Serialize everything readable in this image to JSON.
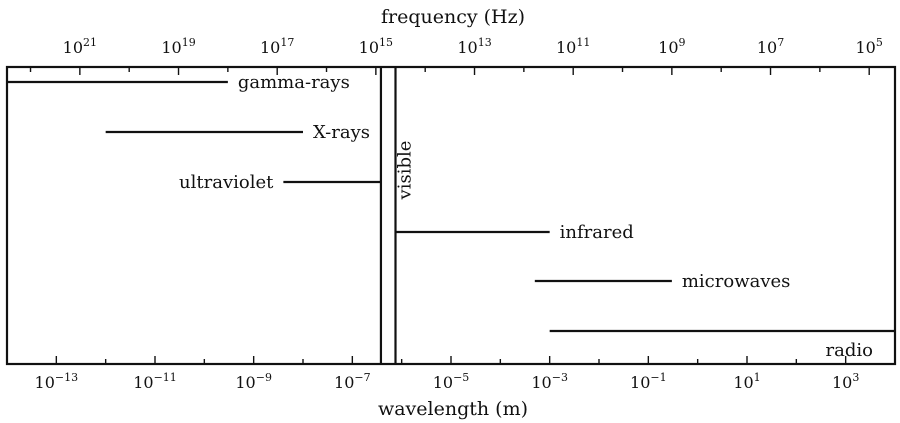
{
  "chart_data": {
    "type": "spectrum-range",
    "title": "",
    "top_axis": {
      "label": "frequency (Hz)",
      "unit": "Hz",
      "scale": "log",
      "ticks": [
        {
          "base": "10",
          "exp": "21",
          "value": 1e+21
        },
        {
          "base": "10",
          "exp": "19",
          "value": 1e+19
        },
        {
          "base": "10",
          "exp": "17",
          "value": 1e+17
        },
        {
          "base": "10",
          "exp": "15",
          "value": 1000000000000000.0
        },
        {
          "base": "10",
          "exp": "13",
          "value": 10000000000000.0
        },
        {
          "base": "10",
          "exp": "11",
          "value": 100000000000.0
        },
        {
          "base": "10",
          "exp": "9",
          "value": 1000000000.0
        },
        {
          "base": "10",
          "exp": "7",
          "value": 10000000.0
        },
        {
          "base": "10",
          "exp": "5",
          "value": 100000.0
        }
      ]
    },
    "bottom_axis": {
      "label": "wavelength (m)",
      "unit": "m",
      "scale": "log",
      "range": [
        1e-14,
        10000.0
      ],
      "ticks": [
        {
          "base": "10",
          "exp": "−13",
          "value": 1e-13
        },
        {
          "base": "10",
          "exp": "−11",
          "value": 1e-11
        },
        {
          "base": "10",
          "exp": "−9",
          "value": 1e-09
        },
        {
          "base": "10",
          "exp": "−7",
          "value": 1e-07
        },
        {
          "base": "10",
          "exp": "−5",
          "value": 1e-05
        },
        {
          "base": "10",
          "exp": "−3",
          "value": 0.001
        },
        {
          "base": "10",
          "exp": "−1",
          "value": 0.1
        },
        {
          "base": "10",
          "exp": "1",
          "value": 10.0
        },
        {
          "base": "10",
          "exp": "3",
          "value": 1000.0
        }
      ]
    },
    "bands": [
      {
        "name": "gamma-rays",
        "wavelength_min": 1e-14,
        "wavelength_max": 3e-10,
        "label_side": "right"
      },
      {
        "name": "X-rays",
        "wavelength_min": 1e-12,
        "wavelength_max": 1e-08,
        "label_side": "right"
      },
      {
        "name": "ultraviolet",
        "wavelength_min": 4e-09,
        "wavelength_max": 3.8e-07,
        "label_side": "left"
      },
      {
        "name": "visible",
        "wavelength_min": 3.8e-07,
        "wavelength_max": 7.5e-07,
        "label_side": "vertical"
      },
      {
        "name": "infrared",
        "wavelength_min": 7.5e-07,
        "wavelength_max": 0.001,
        "label_side": "right"
      },
      {
        "name": "microwaves",
        "wavelength_min": 0.0005,
        "wavelength_max": 0.3,
        "label_side": "right"
      },
      {
        "name": "radio",
        "wavelength_min": 0.001,
        "wavelength_max": 10000.0,
        "label_side": "below-right"
      }
    ]
  }
}
